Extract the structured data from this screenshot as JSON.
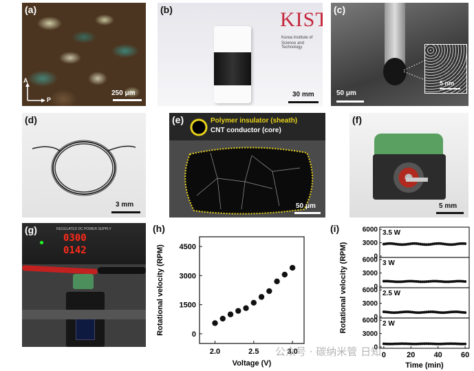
{
  "panels": {
    "a": {
      "label": "(a)",
      "scale": "250 μm",
      "axis_a": "A",
      "axis_p": "P"
    },
    "b": {
      "label": "(b)",
      "scale": "30 mm",
      "logo_text": "KIST",
      "logo_caption_1": "Korea Institute of",
      "logo_caption_2": "Science and Technology"
    },
    "c": {
      "label": "(c)",
      "scale": "50 μm",
      "inset_scale": "5 nm"
    },
    "d": {
      "label": "(d)",
      "scale": "3 mm"
    },
    "e": {
      "label": "(e)",
      "scale": "50 μm",
      "legend_sheath": "Polymer insulator (sheath)",
      "legend_core": "CNT conductor (core)"
    },
    "f": {
      "label": "(f)",
      "scale": "5 mm"
    },
    "g": {
      "label": "(g)",
      "psu_title": "REGULATED DC POWER SUPPLY",
      "readout_1": "0300",
      "readout_2": "0142"
    },
    "h": {
      "label": "(h)"
    },
    "i": {
      "label": "(i)"
    }
  },
  "watermark": "公众号 · 碳纳米管 日知",
  "colors": {
    "dot": "#111111",
    "sheath": "#e8d21a",
    "psu_digits": "#ff2a1a"
  },
  "chart_data": [
    {
      "type": "scatter",
      "panel": "h",
      "xlabel": "Voltage (V)",
      "ylabel": "Rotational velocity (RPM)",
      "xlim": [
        1.8,
        3.15
      ],
      "ylim": [
        -500,
        5000
      ],
      "xticks": [
        2.0,
        2.5,
        3.0
      ],
      "yticks": [
        0,
        1500,
        3000,
        4500
      ],
      "x": [
        2.0,
        2.1,
        2.2,
        2.3,
        2.4,
        2.5,
        2.6,
        2.7,
        2.8,
        2.9,
        3.0
      ],
      "y": [
        550,
        780,
        1000,
        1180,
        1320,
        1600,
        1900,
        2200,
        2700,
        3050,
        3400
      ]
    },
    {
      "type": "scatter",
      "panel": "i",
      "xlabel": "Time (min)",
      "ylabel": "Rotational velocity (RPM)",
      "xlim": [
        -3,
        63
      ],
      "xticks": [
        0,
        20,
        40,
        60
      ],
      "ylim": [
        -300,
        6500
      ],
      "yticks": [
        0,
        3000,
        6000
      ],
      "series": [
        {
          "name": "3.5 W",
          "base": 2700,
          "wobble": 200
        },
        {
          "name": "3 W",
          "base": 1100,
          "wobble": 120
        },
        {
          "name": "2.5 W",
          "base": 1000,
          "wobble": 160
        },
        {
          "name": "2 W",
          "base": 700,
          "wobble": 60
        }
      ]
    }
  ]
}
